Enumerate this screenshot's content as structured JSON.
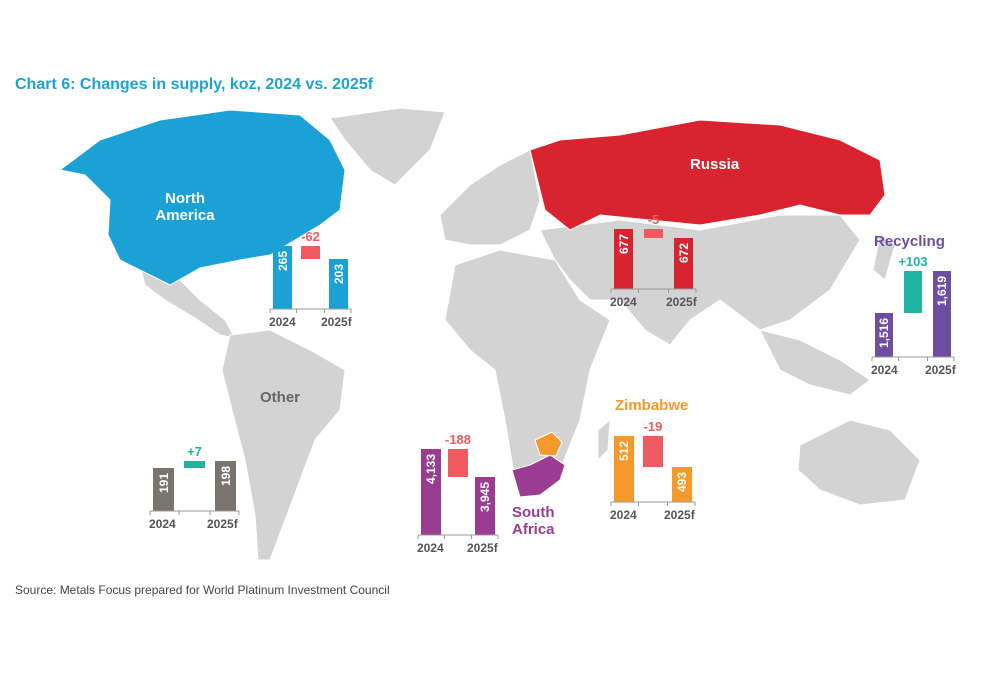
{
  "title": "Chart 6: Changes in supply, koz, 2024 vs. 2025f",
  "source": "Source: Metals Focus prepared for World Platinum Investment Council",
  "colors": {
    "north_america": "#1ba1d6",
    "russia": "#d9232e",
    "south_africa": "#9a3c92",
    "zimbabwe": "#f39a2b",
    "recycling": "#6d4ea0",
    "other": "#7a736e",
    "decrease": "#ee5a5e",
    "increase": "#1fb5a0",
    "land": "#d3d3d3"
  },
  "chart_data": [
    {
      "type": "bar",
      "variant": "waterfall",
      "region": "North America",
      "categories": [
        "2024",
        "2025f"
      ],
      "values": [
        265,
        203
      ],
      "change": -62,
      "labels": [
        "265",
        "203"
      ],
      "change_label": "-62"
    },
    {
      "type": "bar",
      "variant": "waterfall",
      "region": "Russia",
      "categories": [
        "2024",
        "2025f"
      ],
      "values": [
        677,
        672
      ],
      "change": -5,
      "labels": [
        "677",
        "672"
      ],
      "change_label": "-5"
    },
    {
      "type": "bar",
      "variant": "waterfall",
      "region": "Recycling",
      "categories": [
        "2024",
        "2025f"
      ],
      "values": [
        1516,
        1619
      ],
      "change": 103,
      "labels": [
        "1,516",
        "1,619"
      ],
      "change_label": "+103"
    },
    {
      "type": "bar",
      "variant": "waterfall",
      "region": "Other",
      "categories": [
        "2024",
        "2025f"
      ],
      "values": [
        191,
        198
      ],
      "change": 7,
      "labels": [
        "191",
        "198"
      ],
      "change_label": "+7"
    },
    {
      "type": "bar",
      "variant": "waterfall",
      "region": "South Africa",
      "categories": [
        "2024",
        "2025f"
      ],
      "values": [
        4133,
        3945
      ],
      "change": -188,
      "labels": [
        "4,133",
        "3,945"
      ],
      "change_label": "-188"
    },
    {
      "type": "bar",
      "variant": "waterfall",
      "region": "Zimbabwe",
      "categories": [
        "2024",
        "2025f"
      ],
      "values": [
        512,
        493
      ],
      "change": -19,
      "labels": [
        "512",
        "493"
      ],
      "change_label": "-19"
    }
  ],
  "region_labels": {
    "north_america": "North America",
    "russia": "Russia",
    "recycling": "Recycling",
    "other": "Other",
    "south_africa": "South Africa",
    "zimbabwe": "Zimbabwe"
  }
}
